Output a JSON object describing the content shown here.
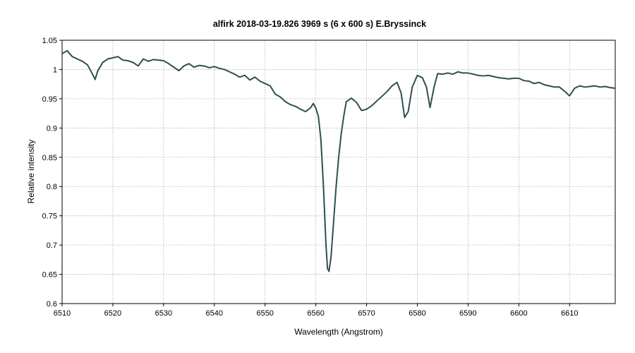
{
  "chart_data": {
    "type": "line",
    "title": "alfirk   2018-03-19.826   3969 s (6 x 600 s)   E.Bryssinck",
    "xlabel": "Wavelength (Angstrom)",
    "ylabel": "Relative intensity",
    "xlim": [
      6510,
      6619
    ],
    "ylim": [
      0.6,
      1.05
    ],
    "x_ticks": [
      6510,
      6520,
      6530,
      6540,
      6550,
      6560,
      6570,
      6580,
      6590,
      6600,
      6610
    ],
    "y_ticks": [
      0.6,
      0.65,
      0.7,
      0.75,
      0.8,
      0.85,
      0.9,
      0.95,
      1,
      1.05
    ],
    "grid": true,
    "line_color": "#2f4f4f",
    "series": [
      {
        "points": [
          [
            6510,
            1.027
          ],
          [
            6511,
            1.032
          ],
          [
            6512,
            1.022
          ],
          [
            6513,
            1.018
          ],
          [
            6514,
            1.014
          ],
          [
            6515,
            1.008
          ],
          [
            6516,
            0.992
          ],
          [
            6516.5,
            0.983
          ],
          [
            6517,
            0.997
          ],
          [
            6518,
            1.012
          ],
          [
            6519,
            1.018
          ],
          [
            6520,
            1.02
          ],
          [
            6521,
            1.022
          ],
          [
            6522,
            1.016
          ],
          [
            6523,
            1.015
          ],
          [
            6524,
            1.012
          ],
          [
            6525,
            1.006
          ],
          [
            6526,
            1.018
          ],
          [
            6527,
            1.014
          ],
          [
            6528,
            1.017
          ],
          [
            6529,
            1.016
          ],
          [
            6530,
            1.015
          ],
          [
            6531,
            1.01
          ],
          [
            6532,
            1.004
          ],
          [
            6533,
            0.998
          ],
          [
            6534,
            1.006
          ],
          [
            6535,
            1.01
          ],
          [
            6536,
            1.004
          ],
          [
            6537,
            1.007
          ],
          [
            6538,
            1.006
          ],
          [
            6539,
            1.003
          ],
          [
            6540,
            1.005
          ],
          [
            6541,
            1.002
          ],
          [
            6542,
            1.0
          ],
          [
            6543,
            0.996
          ],
          [
            6544,
            0.992
          ],
          [
            6545,
            0.987
          ],
          [
            6546,
            0.99
          ],
          [
            6547,
            0.982
          ],
          [
            6548,
            0.987
          ],
          [
            6549,
            0.98
          ],
          [
            6550,
            0.976
          ],
          [
            6551,
            0.972
          ],
          [
            6552,
            0.958
          ],
          [
            6553,
            0.953
          ],
          [
            6554,
            0.945
          ],
          [
            6555,
            0.94
          ],
          [
            6556,
            0.937
          ],
          [
            6557,
            0.932
          ],
          [
            6558,
            0.928
          ],
          [
            6559,
            0.935
          ],
          [
            6559.5,
            0.942
          ],
          [
            6560,
            0.934
          ],
          [
            6560.5,
            0.92
          ],
          [
            6561,
            0.88
          ],
          [
            6561.5,
            0.8
          ],
          [
            6562,
            0.7
          ],
          [
            6562.3,
            0.66
          ],
          [
            6562.6,
            0.655
          ],
          [
            6563,
            0.68
          ],
          [
            6563.5,
            0.74
          ],
          [
            6564,
            0.8
          ],
          [
            6564.5,
            0.85
          ],
          [
            6565,
            0.89
          ],
          [
            6565.5,
            0.92
          ],
          [
            6566,
            0.945
          ],
          [
            6567,
            0.951
          ],
          [
            6568,
            0.944
          ],
          [
            6569,
            0.93
          ],
          [
            6570,
            0.932
          ],
          [
            6571,
            0.938
          ],
          [
            6572,
            0.946
          ],
          [
            6573,
            0.954
          ],
          [
            6574,
            0.962
          ],
          [
            6575,
            0.972
          ],
          [
            6576,
            0.978
          ],
          [
            6576.8,
            0.96
          ],
          [
            6577.5,
            0.918
          ],
          [
            6578.2,
            0.928
          ],
          [
            6579,
            0.97
          ],
          [
            6580,
            0.99
          ],
          [
            6581,
            0.986
          ],
          [
            6581.8,
            0.97
          ],
          [
            6582.5,
            0.935
          ],
          [
            6583.3,
            0.97
          ],
          [
            6584,
            0.993
          ],
          [
            6585,
            0.992
          ],
          [
            6586,
            0.994
          ],
          [
            6587,
            0.992
          ],
          [
            6588,
            0.996
          ],
          [
            6589,
            0.994
          ],
          [
            6590,
            0.994
          ],
          [
            6591,
            0.992
          ],
          [
            6592,
            0.99
          ],
          [
            6593,
            0.989
          ],
          [
            6594,
            0.99
          ],
          [
            6595,
            0.988
          ],
          [
            6596,
            0.986
          ],
          [
            6597,
            0.985
          ],
          [
            6598,
            0.984
          ],
          [
            6599,
            0.985
          ],
          [
            6600,
            0.985
          ],
          [
            6601,
            0.981
          ],
          [
            6602,
            0.98
          ],
          [
            6603,
            0.976
          ],
          [
            6604,
            0.978
          ],
          [
            6605,
            0.974
          ],
          [
            6606,
            0.972
          ],
          [
            6607,
            0.97
          ],
          [
            6608,
            0.97
          ],
          [
            6609,
            0.963
          ],
          [
            6610,
            0.955
          ],
          [
            6611,
            0.968
          ],
          [
            6612,
            0.972
          ],
          [
            6613,
            0.97
          ],
          [
            6614,
            0.971
          ],
          [
            6615,
            0.972
          ],
          [
            6616,
            0.97
          ],
          [
            6617,
            0.971
          ],
          [
            6618,
            0.969
          ],
          [
            6619,
            0.968
          ]
        ]
      }
    ]
  }
}
